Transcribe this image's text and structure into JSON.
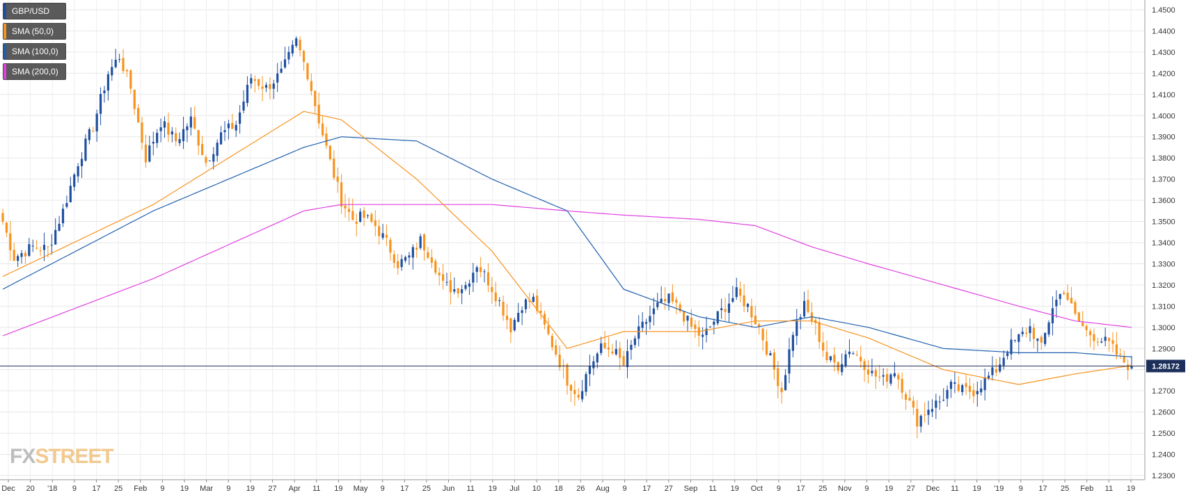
{
  "legend": [
    {
      "label": "GBP/USD",
      "color": "#1f4fa0"
    },
    {
      "label": "SMA (50,0)",
      "color": "#f7931e"
    },
    {
      "label": "SMA (100,0)",
      "color": "#1f5fae"
    },
    {
      "label": "SMA (200,0)",
      "color": "#e040e0"
    }
  ],
  "logo": {
    "fx": "FX",
    "street": "STREET"
  },
  "chart_data": {
    "type": "candlestick",
    "instrument": "GBP/USD",
    "ylim": [
      1.23,
      1.45
    ],
    "y_ticks": [
      "1.4500",
      "1.4400",
      "1.4300",
      "1.4200",
      "1.4100",
      "1.4000",
      "1.3900",
      "1.3800",
      "1.3700",
      "1.3600",
      "1.3500",
      "1.3400",
      "1.3300",
      "1.3200",
      "1.3100",
      "1.3000",
      "1.2900",
      "1.2800",
      "1.2700",
      "1.2600",
      "1.2500",
      "1.2400",
      "1.2300"
    ],
    "x_ticks": [
      "Dec",
      "20",
      "'18",
      "9",
      "17",
      "25",
      "Feb",
      "9",
      "19",
      "Mar",
      "9",
      "19",
      "27",
      "Apr",
      "11",
      "19",
      "May",
      "9",
      "17",
      "25",
      "Jun",
      "11",
      "19",
      "Jul",
      "10",
      "18",
      "26",
      "Aug",
      "9",
      "17",
      "27",
      "Sep",
      "11",
      "19",
      "Oct",
      "9",
      "17",
      "25",
      "Nov",
      "9",
      "19",
      "27",
      "Dec",
      "11",
      "19",
      "'19",
      "9",
      "17",
      "25",
      "Feb",
      "11",
      "19"
    ],
    "current_price": 1.28172,
    "current_label": "1.28172",
    "grid": true,
    "legend_position": "top-left",
    "colors": {
      "bull": "#1f4fa0",
      "bear": "#f7931e",
      "sma50": "#f7931e",
      "sma100": "#1f5fae",
      "sma200": "#e040e0"
    },
    "close_anchors": [
      [
        0,
        1.35
      ],
      [
        3,
        1.333
      ],
      [
        8,
        1.338
      ],
      [
        12,
        1.337
      ],
      [
        16,
        1.355
      ],
      [
        20,
        1.378
      ],
      [
        24,
        1.395
      ],
      [
        28,
        1.42
      ],
      [
        31,
        1.428
      ],
      [
        34,
        1.413
      ],
      [
        38,
        1.38
      ],
      [
        42,
        1.397
      ],
      [
        46,
        1.388
      ],
      [
        50,
        1.398
      ],
      [
        54,
        1.378
      ],
      [
        58,
        1.391
      ],
      [
        62,
        1.396
      ],
      [
        66,
        1.418
      ],
      [
        70,
        1.413
      ],
      [
        74,
        1.42
      ],
      [
        78,
        1.435
      ],
      [
        81,
        1.42
      ],
      [
        84,
        1.398
      ],
      [
        87,
        1.378
      ],
      [
        90,
        1.36
      ],
      [
        93,
        1.351
      ],
      [
        96,
        1.352
      ],
      [
        99,
        1.348
      ],
      [
        102,
        1.34
      ],
      [
        105,
        1.33
      ],
      [
        108,
        1.333
      ],
      [
        111,
        1.341
      ],
      [
        114,
        1.333
      ],
      [
        117,
        1.32
      ],
      [
        120,
        1.318
      ],
      [
        123,
        1.32
      ],
      [
        126,
        1.33
      ],
      [
        129,
        1.322
      ],
      [
        132,
        1.312
      ],
      [
        135,
        1.3
      ],
      [
        138,
        1.311
      ],
      [
        141,
        1.313
      ],
      [
        144,
        1.3
      ],
      [
        147,
        1.288
      ],
      [
        150,
        1.275
      ],
      [
        153,
        1.268
      ],
      [
        156,
        1.282
      ],
      [
        159,
        1.29
      ],
      [
        162,
        1.29
      ],
      [
        165,
        1.282
      ],
      [
        168,
        1.295
      ],
      [
        171,
        1.303
      ],
      [
        174,
        1.31
      ],
      [
        177,
        1.313
      ],
      [
        180,
        1.308
      ],
      [
        183,
        1.3
      ],
      [
        186,
        1.295
      ],
      [
        189,
        1.303
      ],
      [
        192,
        1.31
      ],
      [
        195,
        1.316
      ],
      [
        198,
        1.31
      ],
      [
        201,
        1.3
      ],
      [
        204,
        1.285
      ],
      [
        207,
        1.27
      ],
      [
        210,
        1.298
      ],
      [
        213,
        1.31
      ],
      [
        216,
        1.3
      ],
      [
        219,
        1.285
      ],
      [
        222,
        1.282
      ],
      [
        225,
        1.29
      ],
      [
        228,
        1.285
      ],
      [
        231,
        1.278
      ],
      [
        234,
        1.275
      ],
      [
        237,
        1.28
      ],
      [
        240,
        1.268
      ],
      [
        243,
        1.256
      ],
      [
        246,
        1.262
      ],
      [
        249,
        1.265
      ],
      [
        252,
        1.272
      ],
      [
        255,
        1.27
      ],
      [
        258,
        1.27
      ],
      [
        261,
        1.275
      ],
      [
        264,
        1.28
      ],
      [
        267,
        1.29
      ],
      [
        270,
        1.295
      ],
      [
        273,
        1.3
      ],
      [
        276,
        1.29
      ],
      [
        279,
        1.31
      ],
      [
        282,
        1.318
      ],
      [
        285,
        1.305
      ],
      [
        288,
        1.298
      ],
      [
        291,
        1.295
      ],
      [
        294,
        1.292
      ],
      [
        297,
        1.285
      ],
      [
        300,
        1.281
      ]
    ],
    "sma50": [
      [
        0,
        1.324
      ],
      [
        40,
        1.358
      ],
      [
        80,
        1.402
      ],
      [
        90,
        1.398
      ],
      [
        110,
        1.37
      ],
      [
        130,
        1.336
      ],
      [
        150,
        1.29
      ],
      [
        165,
        1.298
      ],
      [
        185,
        1.298
      ],
      [
        200,
        1.303
      ],
      [
        215,
        1.303
      ],
      [
        230,
        1.295
      ],
      [
        250,
        1.28
      ],
      [
        270,
        1.273
      ],
      [
        285,
        1.278
      ],
      [
        300,
        1.282
      ]
    ],
    "sma100": [
      [
        0,
        1.318
      ],
      [
        40,
        1.355
      ],
      [
        80,
        1.385
      ],
      [
        90,
        1.39
      ],
      [
        110,
        1.388
      ],
      [
        130,
        1.37
      ],
      [
        150,
        1.355
      ],
      [
        165,
        1.318
      ],
      [
        185,
        1.305
      ],
      [
        200,
        1.3
      ],
      [
        215,
        1.305
      ],
      [
        230,
        1.3
      ],
      [
        250,
        1.29
      ],
      [
        270,
        1.288
      ],
      [
        285,
        1.288
      ],
      [
        300,
        1.286
      ]
    ],
    "sma200": [
      [
        0,
        1.296
      ],
      [
        40,
        1.323
      ],
      [
        80,
        1.355
      ],
      [
        90,
        1.358
      ],
      [
        110,
        1.358
      ],
      [
        130,
        1.358
      ],
      [
        150,
        1.355
      ],
      [
        165,
        1.353
      ],
      [
        185,
        1.351
      ],
      [
        200,
        1.348
      ],
      [
        215,
        1.338
      ],
      [
        230,
        1.33
      ],
      [
        250,
        1.32
      ],
      [
        270,
        1.31
      ],
      [
        285,
        1.303
      ],
      [
        300,
        1.3
      ]
    ]
  }
}
